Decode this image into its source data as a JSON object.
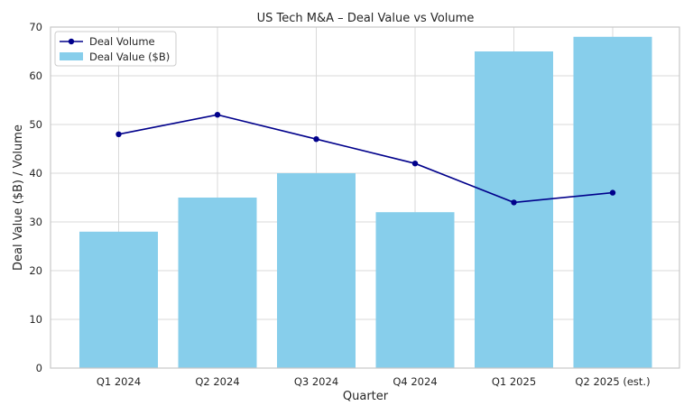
{
  "chart_data": {
    "type": "bar",
    "title": "US Tech M&A – Deal Value vs Volume",
    "xlabel": "Quarter",
    "ylabel": "Deal Value ($B) / Volume",
    "categories": [
      "Q1 2024",
      "Q2 2024",
      "Q3 2024",
      "Q4 2024",
      "Q1 2025",
      "Q2 2025 (est.)"
    ],
    "ylim": [
      0,
      70
    ],
    "yticks": [
      0,
      10,
      20,
      30,
      40,
      50,
      60,
      70
    ],
    "grid": true,
    "legend_position": "top-left",
    "series": [
      {
        "name": "Deal Value ($B)",
        "kind": "bar",
        "color": "#87ceeb",
        "values": [
          28,
          35,
          40,
          32,
          65,
          68
        ]
      },
      {
        "name": "Deal Volume",
        "kind": "line",
        "color": "#00008b",
        "marker": "circle",
        "values": [
          48,
          52,
          47,
          42,
          34,
          36
        ]
      }
    ]
  }
}
